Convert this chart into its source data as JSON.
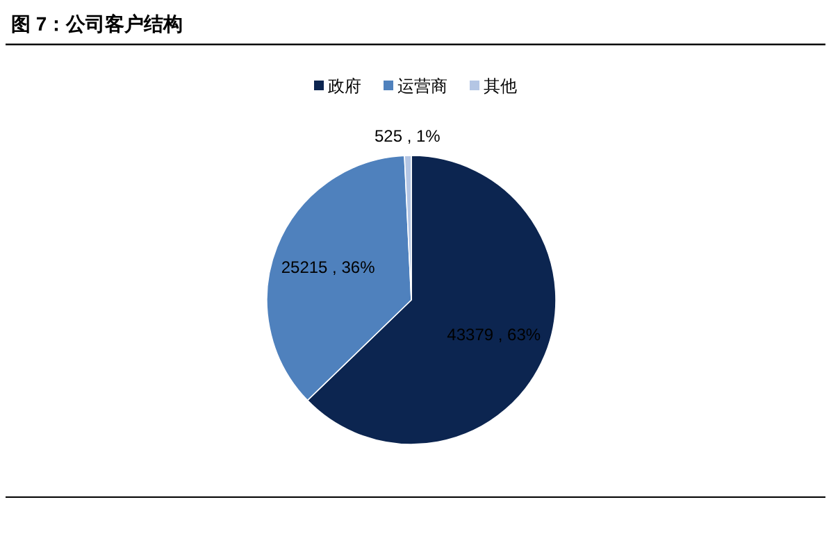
{
  "chart_data": {
    "type": "pie",
    "title": "图 7：公司客户结构",
    "categories": [
      "政府",
      "运营商",
      "其他"
    ],
    "values": [
      43379,
      25215,
      525
    ],
    "colors": [
      "#0c2550",
      "#4f81bd",
      "#b4c6e4"
    ],
    "value_labels": [
      "43379 , 63%",
      "25215 , 36%",
      "525 , 1%"
    ],
    "legend": "top"
  }
}
